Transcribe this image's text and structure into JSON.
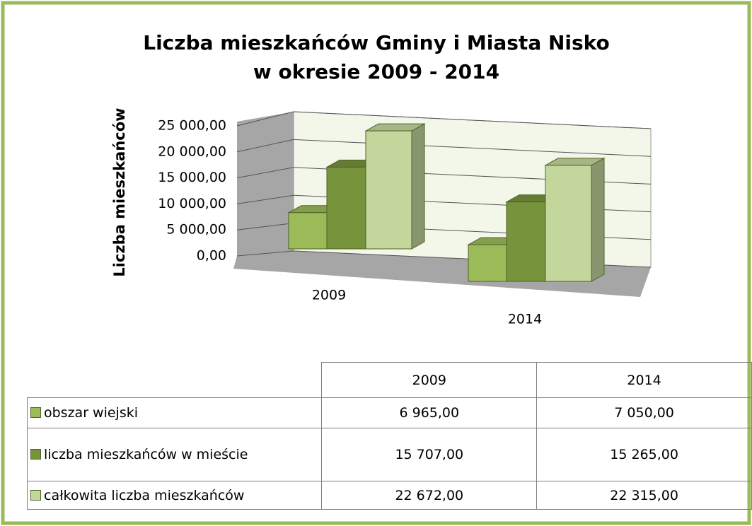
{
  "chart_data": {
    "type": "bar3d",
    "title": [
      "Liczba mieszkańców Gminy  i Miasta Nisko",
      "w okresie 2009 - 2014"
    ],
    "ylabel": "Liczba mieszkańców",
    "categories": [
      "2009",
      "2014"
    ],
    "series": [
      {
        "name": "obszar wiejski",
        "color": "#9bbb59",
        "values": [
          6965,
          7050
        ],
        "value_labels": [
          "6 965,00",
          "7 050,00"
        ]
      },
      {
        "name": "liczba mieszkańców w mieście",
        "color": "#77933c",
        "values": [
          15707,
          15265
        ],
        "value_labels": [
          "15 707,00",
          "15 265,00"
        ]
      },
      {
        "name": "całkowita liczba mieszkańców",
        "color": "#c3d69b",
        "values": [
          22672,
          22315
        ],
        "value_labels": [
          "22 672,00",
          "22 315,00"
        ]
      }
    ],
    "ylim": [
      0,
      25000
    ],
    "yticks": [
      {
        "value": 0,
        "label": "0,00"
      },
      {
        "value": 5000,
        "label": "5 000,00"
      },
      {
        "value": 10000,
        "label": "10 000,00"
      },
      {
        "value": 15000,
        "label": "15 000,00"
      },
      {
        "value": 20000,
        "label": "20 000,00"
      },
      {
        "value": 25000,
        "label": "25 000,00"
      }
    ],
    "grid": true,
    "legend": "table"
  }
}
